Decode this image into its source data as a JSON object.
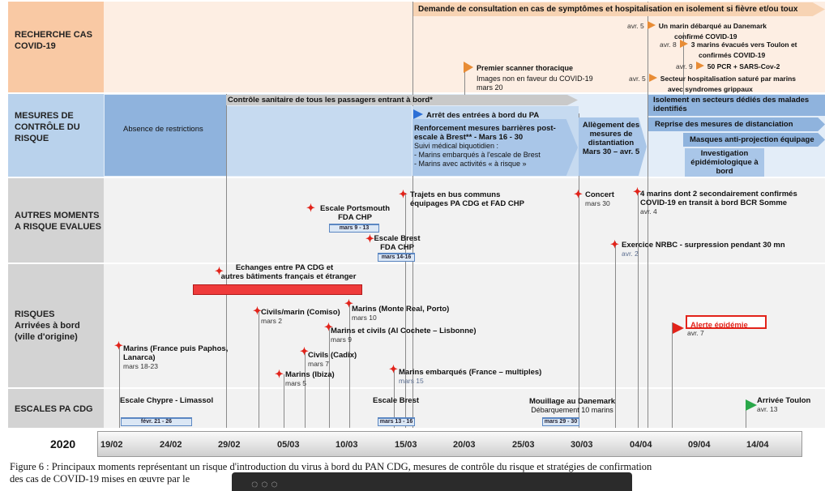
{
  "rows": {
    "r1": "RECHERCHE CAS COVID-19",
    "r2": "MESURES DE CONTRÔLE DU RISQUE",
    "r3": "AUTRES MOMENTS A RISQUE EVALUES",
    "r4a": "RISQUES",
    "r4b": "Arrivées à bord",
    "r4c": "(ville d'origine)",
    "r5": "ESCALES PA CDG"
  },
  "covid": {
    "banner": "Demande de consultation en cas de symptômes et hospitalisation en isolement si fièvre et/ou toux",
    "e1_date": "avr. 5",
    "e1_l1": "Un marin débarqué au Danemark",
    "e1_l2": "confirmé COVID-19",
    "e2_date": "avr. 8",
    "e2_l1": "3 marins évacués vers Toulon et",
    "e2_l2": "confirmés COVID-19",
    "e3_date": "avr. 9",
    "e3_l1": "50 PCR + SARS-Cov-2",
    "e4_date": "avr. 5",
    "e4_l1": "Secteur hospitalisation saturé par marins",
    "e4_l2": "avec syndromes grippaux",
    "scan_l1": "Premier scanner thoracique",
    "scan_l2": "Images non en faveur du COVID-19",
    "scan_date": "mars 20"
  },
  "control": {
    "no_restrictions": "Absence de restrictions",
    "sanitary": "Contrôle sanitaire de tous les passagers entrant à bord*",
    "stop_entries": "Arrêt des entrées à bord du PA",
    "reinf_l1": "Renforcement mesures barrières post-",
    "reinf_l2": "escale à Brest** - Mars 16 - 30",
    "reinf_l3": "Suivi médical biquotidien :",
    "reinf_l4": "-     Marins embarqués à l'escale de Brest",
    "reinf_l5": "-     Marins avec activités « à risque »",
    "allev_l1": "Allègement des",
    "allev_l2": "mesures de",
    "allev_l3": "distantiation",
    "allev_l4": "Mars 30 – avr. 5",
    "iso_l1": "Isolement en secteurs dédiés des malades",
    "iso_l2": "identifiés",
    "reprise": "Reprise des mesures de distanciation",
    "masques": "Masques anti-projection équipage",
    "invest_l1": "Investigation",
    "invest_l2": "épidémiologique à",
    "invest_l3": "bord"
  },
  "moments": {
    "ports_l1": "Escale Portsmouth",
    "ports_l2": "FDA CHP",
    "ports_date": "mars 9 - 13",
    "brest_l1": "Escale Brest",
    "brest_l2": "FDA CHP",
    "brest_date": "mars 14-16",
    "bus_l1": "Trajets en bus communs",
    "bus_l2": "équipages PA CDG et FAD CHP",
    "concert": "Concert",
    "concert_date": "mars 30",
    "four_l1": "4 marins dont 2 secondairement confirmés",
    "four_l2": "COVID-19 en transit à bord BCR Somme",
    "four_date": "avr. 4",
    "nrbc": "Exercice NRBC - surpression pendant 30 mn",
    "nrbc_date": "avr. 2"
  },
  "risks": {
    "exch_l1": "Echanges entre PA CDG et",
    "exch_l2": "autres bâtiments français et étranger",
    "civils": "Civils/marin (Comiso)",
    "civils_date": "mars 2",
    "mr": "Marins (Monte Real, Porto)",
    "mr_date": "mars 10",
    "ac": "Marins et civils (Al Cochete – Lisbonne)",
    "ac_date": "mars 9",
    "cadix": "Civils (Cadix)",
    "cadix_date": "mars 7",
    "ibiza": "Marins (Ibiza)",
    "ibiza_date": "mars 5",
    "paphos_l1": "Marins (France puis Paphos,",
    "paphos_l2": "Lanarca)",
    "paphos_date": "mars 18-23",
    "multi": "Marins embarqués (France – multiples)",
    "multi_date": "mars 15",
    "alerte": "Alerte épidémie",
    "alerte_date": "avr. 7"
  },
  "escales": {
    "chypre": "Escale Chypre - Limassol",
    "chypre_date": "févr. 21 - 26",
    "brest": "Escale Brest",
    "brest_date": "mars 13 - 16",
    "dk_l1": "Mouillage au Danemark",
    "dk_l2": "Débarquement 10 marins",
    "dk_date": "mars 29 - 30",
    "toulon": "Arrivée Toulon",
    "toulon_date": "avr. 13"
  },
  "axis": {
    "year": "2020",
    "ticks": [
      "19/02",
      "24/02",
      "29/02",
      "05/03",
      "10/03",
      "15/03",
      "20/03",
      "25/03",
      "30/03",
      "04/04",
      "09/04",
      "14/04"
    ]
  },
  "caption": {
    "l1": "Figure 6 : Principaux moments représentant un risque d'introduction du virus à bord du PAN CDG, mesures de contrôle du risque et stratégies de confirmation",
    "l2": "des cas de COVID-19 mises en œuvre par le"
  },
  "colors": {
    "row1": "#f9c9a4",
    "row1_bg": "#fdeee3",
    "row2": "#b9d2ec",
    "row2_bg": "#e3edf8",
    "row_gray": "#d3d3d3",
    "row_gray_bg": "#f2f2f2",
    "accent_red": "#e2231a",
    "accent_blue": "#5b87c2"
  }
}
